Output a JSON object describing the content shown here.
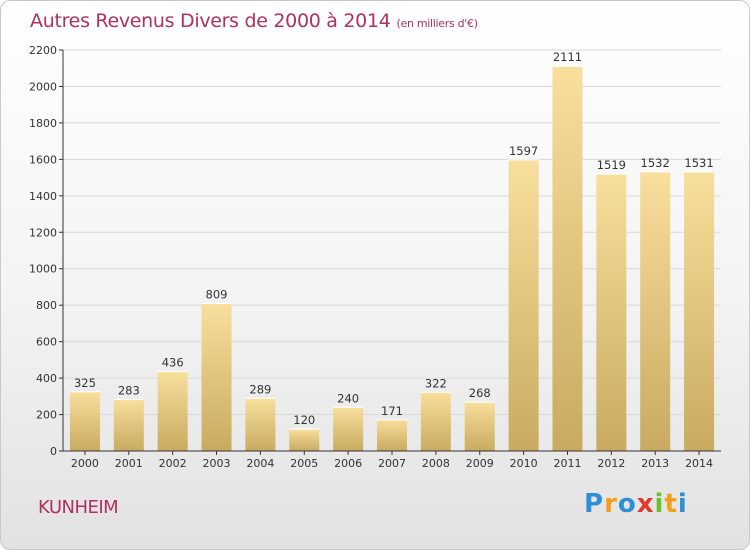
{
  "header": {
    "title": "Autres Revenus Divers de 2000 à 2014",
    "unit": "(en milliers d'€)"
  },
  "footer": {
    "commune": "KUNHEIM",
    "brand": "Proxiti",
    "brand_letters": [
      {
        "ch": "P",
        "color": "#2e8fd6"
      },
      {
        "ch": "r",
        "color": "#f0a01a"
      },
      {
        "ch": "o",
        "color": "#2e8fd6"
      },
      {
        "ch": "x",
        "color": "#e03a2c"
      },
      {
        "ch": "i",
        "color": "#6abf2e"
      },
      {
        "ch": "t",
        "color": "#f0a01a"
      },
      {
        "ch": "i",
        "color": "#2e8fd6"
      }
    ]
  },
  "colors": {
    "title": "#b0305f",
    "bar_light": "#f8df9c",
    "bar_dark": "#c9aa60",
    "axis": "#333333",
    "grid": "#d8d8d8"
  },
  "chart_data": {
    "type": "bar",
    "title": "Autres Revenus Divers de 2000 à 2014",
    "subtitle": "(en milliers d'€)",
    "xlabel": "",
    "ylabel": "",
    "categories": [
      "2000",
      "2001",
      "2002",
      "2003",
      "2004",
      "2005",
      "2006",
      "2007",
      "2008",
      "2009",
      "2010",
      "2011",
      "2012",
      "2013",
      "2014"
    ],
    "values": [
      325,
      283,
      436,
      809,
      289,
      120,
      240,
      171,
      322,
      268,
      1597,
      2111,
      1519,
      1532,
      1531
    ],
    "ylim": [
      0,
      2200
    ],
    "yticks": [
      0,
      200,
      400,
      600,
      800,
      1000,
      1200,
      1400,
      1600,
      1800,
      2000,
      2200
    ],
    "grid": true,
    "data_labels": true,
    "legend": "none"
  }
}
